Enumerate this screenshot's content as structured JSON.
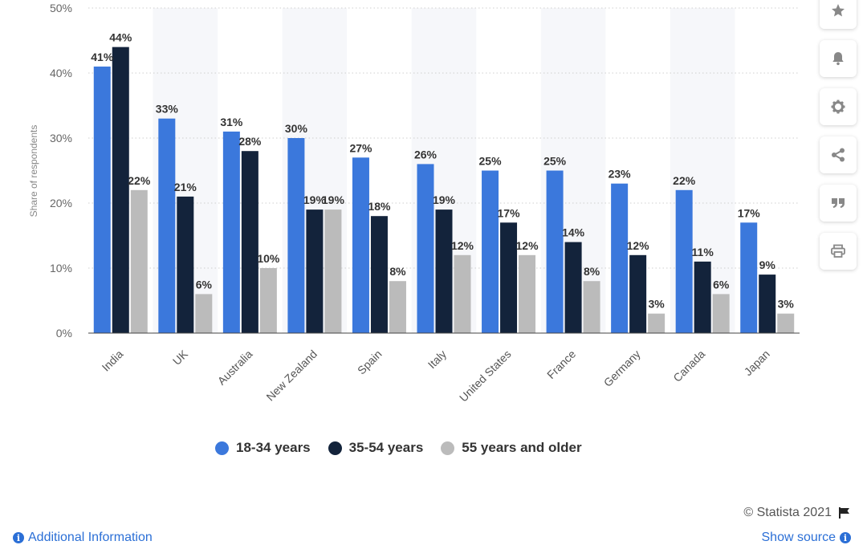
{
  "chart_data": {
    "type": "bar",
    "categories": [
      "India",
      "UK",
      "Australia",
      "New Zealand",
      "Spain",
      "Italy",
      "United States",
      "France",
      "Germany",
      "Canada",
      "Japan"
    ],
    "series": [
      {
        "name": "18-34 years",
        "color": "#3b78dc",
        "values": [
          41,
          33,
          31,
          30,
          27,
          26,
          25,
          25,
          23,
          22,
          17
        ]
      },
      {
        "name": "35-54 years",
        "color": "#13233b",
        "values": [
          44,
          21,
          28,
          19,
          18,
          19,
          17,
          14,
          12,
          11,
          9
        ]
      },
      {
        "name": "55 years and older",
        "color": "#bbbbbb",
        "values": [
          22,
          6,
          10,
          19,
          8,
          12,
          12,
          8,
          3,
          6,
          3
        ]
      }
    ],
    "ylabel": "Share of respondents",
    "ylim": [
      0,
      50
    ],
    "yticks": [
      "0%",
      "10%",
      "20%",
      "30%",
      "40%",
      "50%"
    ],
    "value_suffix": "%",
    "grid": true,
    "legend_position": "bottom"
  },
  "legend": {
    "items": [
      {
        "label": "18-34 years",
        "color": "#3b78dc"
      },
      {
        "label": "35-54 years",
        "color": "#13233b"
      },
      {
        "label": "55 years and older",
        "color": "#bbbbbb"
      }
    ]
  },
  "sidebar": {
    "icons": [
      "star-icon",
      "bell-icon",
      "gear-icon",
      "share-icon",
      "quote-icon",
      "print-icon"
    ]
  },
  "footer": {
    "copyright": "© Statista 2021",
    "additional_info": "Additional Information",
    "show_source": "Show source"
  }
}
